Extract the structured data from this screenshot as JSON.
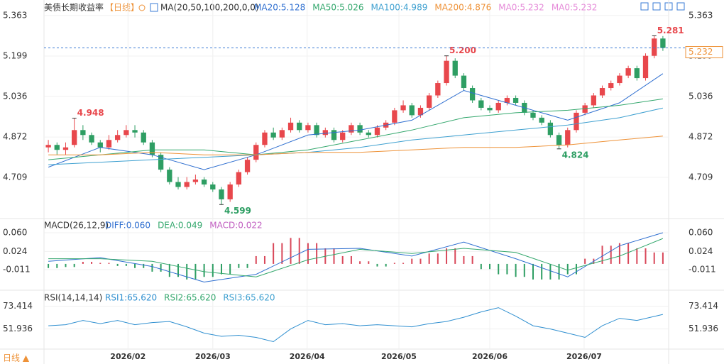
{
  "chart_data": [
    {
      "type": "candlestick",
      "title": "美债长期收益率",
      "period": "【日线】",
      "ma_label": "MA(20,50,100,200,0,0)",
      "up_color": "#e8474c",
      "down_color": "#2e9e63",
      "xlim": [
        0,
        72
      ],
      "ylim": [
        4.551,
        5.397
      ],
      "yticks": [
        5.363,
        5.199,
        5.036,
        4.872,
        4.709
      ],
      "xticks": [
        {
          "value": 9.2,
          "label": "2026/02"
        },
        {
          "value": 19.0,
          "label": "2026/03"
        },
        {
          "value": 29.9,
          "label": "2026/04"
        },
        {
          "value": 40.5,
          "label": "2026/05"
        },
        {
          "value": 51.0,
          "label": "2026/06"
        },
        {
          "value": 61.9,
          "label": "2026/07"
        }
      ],
      "ohlc": [
        [
          4.83,
          4.86,
          4.81,
          4.84
        ],
        [
          4.84,
          4.85,
          4.8,
          4.82
        ],
        [
          4.82,
          4.85,
          4.8,
          4.83
        ],
        [
          4.84,
          4.948,
          4.83,
          4.9
        ],
        [
          4.9,
          4.92,
          4.86,
          4.88
        ],
        [
          4.88,
          4.89,
          4.84,
          4.85
        ],
        [
          4.85,
          4.86,
          4.81,
          4.83
        ],
        [
          4.83,
          4.88,
          4.82,
          4.86
        ],
        [
          4.86,
          4.9,
          4.85,
          4.88
        ],
        [
          4.88,
          4.92,
          4.87,
          4.9
        ],
        [
          4.9,
          4.92,
          4.87,
          4.89
        ],
        [
          4.89,
          4.9,
          4.84,
          4.85
        ],
        [
          4.85,
          4.86,
          4.79,
          4.8
        ],
        [
          4.8,
          4.81,
          4.73,
          4.74
        ],
        [
          4.74,
          4.75,
          4.68,
          4.69
        ],
        [
          4.69,
          4.71,
          4.66,
          4.67
        ],
        [
          4.67,
          4.71,
          4.66,
          4.69
        ],
        [
          4.69,
          4.72,
          4.68,
          4.7
        ],
        [
          4.7,
          4.71,
          4.67,
          4.68
        ],
        [
          4.68,
          4.69,
          4.65,
          4.66
        ],
        [
          4.66,
          4.67,
          4.599,
          4.62
        ],
        [
          4.62,
          4.69,
          4.61,
          4.68
        ],
        [
          4.68,
          4.74,
          4.67,
          4.73
        ],
        [
          4.73,
          4.79,
          4.72,
          4.78
        ],
        [
          4.78,
          4.85,
          4.77,
          4.84
        ],
        [
          4.84,
          4.9,
          4.83,
          4.89
        ],
        [
          4.89,
          4.91,
          4.86,
          4.87
        ],
        [
          4.87,
          4.91,
          4.86,
          4.9
        ],
        [
          4.9,
          4.95,
          4.89,
          4.93
        ],
        [
          4.93,
          4.94,
          4.89,
          4.9
        ],
        [
          4.9,
          4.93,
          4.89,
          4.92
        ],
        [
          4.92,
          4.93,
          4.87,
          4.88
        ],
        [
          4.88,
          4.91,
          4.87,
          4.9
        ],
        [
          4.9,
          4.91,
          4.85,
          4.86
        ],
        [
          4.86,
          4.9,
          4.85,
          4.89
        ],
        [
          4.89,
          4.93,
          4.88,
          4.92
        ],
        [
          4.92,
          4.93,
          4.88,
          4.89
        ],
        [
          4.89,
          4.9,
          4.87,
          4.88
        ],
        [
          4.88,
          4.92,
          4.87,
          4.91
        ],
        [
          4.91,
          4.94,
          4.9,
          4.93
        ],
        [
          4.93,
          4.99,
          4.92,
          4.98
        ],
        [
          4.98,
          5.02,
          4.97,
          5.0
        ],
        [
          5.0,
          5.01,
          4.95,
          4.96
        ],
        [
          4.96,
          5.0,
          4.95,
          4.99
        ],
        [
          4.99,
          5.05,
          4.98,
          5.04
        ],
        [
          5.04,
          5.1,
          5.03,
          5.09
        ],
        [
          5.09,
          5.2,
          5.08,
          5.18
        ],
        [
          5.18,
          5.19,
          5.11,
          5.12
        ],
        [
          5.12,
          5.13,
          5.06,
          5.07
        ],
        [
          5.07,
          5.08,
          5.01,
          5.02
        ],
        [
          5.02,
          5.03,
          4.98,
          4.99
        ],
        [
          4.99,
          5.0,
          4.97,
          4.98
        ],
        [
          4.98,
          5.02,
          4.97,
          5.01
        ],
        [
          5.01,
          5.04,
          5.0,
          5.03
        ],
        [
          5.03,
          5.04,
          5.0,
          5.01
        ],
        [
          5.01,
          5.02,
          4.96,
          4.97
        ],
        [
          4.97,
          4.98,
          4.94,
          4.95
        ],
        [
          4.95,
          4.96,
          4.92,
          4.93
        ],
        [
          4.93,
          4.94,
          4.87,
          4.88
        ],
        [
          4.88,
          4.89,
          4.824,
          4.84
        ],
        [
          4.84,
          4.91,
          4.83,
          4.9
        ],
        [
          4.9,
          4.98,
          4.89,
          4.97
        ],
        [
          4.97,
          5.01,
          4.96,
          5.0
        ],
        [
          5.0,
          5.05,
          4.99,
          5.04
        ],
        [
          5.04,
          5.08,
          5.03,
          5.07
        ],
        [
          5.07,
          5.1,
          5.06,
          5.09
        ],
        [
          5.09,
          5.13,
          5.08,
          5.12
        ],
        [
          5.12,
          5.16,
          5.11,
          5.15
        ],
        [
          5.15,
          5.16,
          5.1,
          5.11
        ],
        [
          5.11,
          5.21,
          5.1,
          5.2
        ],
        [
          5.2,
          5.281,
          5.19,
          5.27
        ],
        [
          5.27,
          5.28,
          5.22,
          5.232
        ]
      ],
      "series": [
        {
          "label": "MA20:5.128",
          "color": "#2f6fd0",
          "x": [
            0,
            6,
            12,
            18,
            24,
            30,
            36,
            42,
            48,
            54,
            60,
            66,
            71
          ],
          "values": [
            4.75,
            4.83,
            4.8,
            4.74,
            4.8,
            4.88,
            4.9,
            4.94,
            5.06,
            5.0,
            4.94,
            5.01,
            5.128
          ]
        },
        {
          "label": "MA50:5.026",
          "color": "#35a86e",
          "x": [
            0,
            6,
            12,
            18,
            24,
            30,
            36,
            42,
            48,
            54,
            60,
            66,
            71
          ],
          "values": [
            4.78,
            4.8,
            4.82,
            4.82,
            4.8,
            4.82,
            4.86,
            4.9,
            4.95,
            4.97,
            4.98,
            5.0,
            5.026
          ]
        },
        {
          "label": "MA100:4.989",
          "color": "#3ea0d0",
          "x": [
            0,
            6,
            12,
            18,
            24,
            30,
            36,
            42,
            48,
            54,
            60,
            66,
            71
          ],
          "values": [
            4.76,
            4.77,
            4.78,
            4.79,
            4.8,
            4.81,
            4.83,
            4.86,
            4.88,
            4.9,
            4.92,
            4.95,
            4.989
          ]
        },
        {
          "label": "MA200:4.876",
          "color": "#ee9238",
          "x": [
            0,
            6,
            12,
            18,
            24,
            30,
            36,
            42,
            48,
            54,
            60,
            66,
            71
          ],
          "values": [
            4.8,
            4.8,
            4.81,
            4.8,
            4.8,
            4.81,
            4.81,
            4.82,
            4.83,
            4.83,
            4.84,
            4.86,
            4.876
          ]
        }
      ],
      "extra_legend": [
        {
          "label": "MA0:5.232",
          "color": "#e58ad8"
        },
        {
          "label": "MA0:5.232",
          "color": "#e58ad8"
        }
      ],
      "annotations": [
        {
          "x": 3,
          "value": 4.948,
          "label": "4.948",
          "color": "#e8474c"
        },
        {
          "x": 20,
          "value": 4.599,
          "label": "4.599",
          "color": "#2e9e63"
        },
        {
          "x": 46,
          "value": 5.2,
          "label": "5.200",
          "color": "#e8474c"
        },
        {
          "x": 59,
          "value": 4.824,
          "label": "4.824",
          "color": "#2e9e63"
        },
        {
          "x": 70,
          "value": 5.281,
          "label": "5.281",
          "color": "#e8474c"
        }
      ],
      "last_price": {
        "value": 5.232,
        "label": "5.232",
        "color": "#ee9238"
      },
      "period_button": "日线 ▲"
    },
    {
      "type": "macd",
      "title": "MACD(26,12,9)",
      "xlim": [
        0,
        72
      ],
      "ylim": [
        -0.0493,
        0.0846
      ],
      "yticks": [
        {
          "value": 0.06,
          "label": "0.060"
        },
        {
          "value": 0.024,
          "label": "0.024"
        },
        {
          "value": -0.011,
          "label": "-0.011"
        }
      ],
      "up_color": "#d9485a",
      "down_color": "#2e9e63",
      "histogram": {
        "label": "MACD:0.022",
        "color": "#c05dc0",
        "x": [
          0,
          2,
          4,
          6,
          8,
          10,
          12,
          14,
          16,
          18,
          20,
          22,
          24,
          26,
          28,
          30,
          32,
          34,
          36,
          38,
          40,
          42,
          44,
          46,
          48,
          50,
          52,
          54,
          56,
          58,
          60,
          62,
          64,
          66,
          68,
          70
        ],
        "values": [
          -0.008,
          -0.006,
          0.004,
          0.002,
          -0.004,
          -0.008,
          -0.015,
          -0.025,
          -0.03,
          -0.025,
          -0.02,
          -0.008,
          0.015,
          0.04,
          0.05,
          0.04,
          0.03,
          0.015,
          0.005,
          -0.005,
          0.002,
          0.01,
          0.02,
          0.03,
          0.015,
          -0.01,
          -0.02,
          -0.025,
          -0.03,
          -0.03,
          -0.02,
          0.01,
          0.035,
          0.04,
          0.03,
          0.022
        ]
      },
      "series": [
        {
          "label": "DIFF:0.060",
          "color": "#2f6fd0",
          "x": [
            0,
            6,
            12,
            18,
            24,
            30,
            36,
            42,
            48,
            54,
            60,
            66,
            71
          ],
          "values": [
            0.005,
            0.012,
            -0.005,
            -0.035,
            -0.02,
            0.028,
            0.03,
            0.015,
            0.042,
            0.01,
            -0.025,
            0.035,
            0.06
          ]
        },
        {
          "label": "DEA:0.049",
          "color": "#35a86e",
          "x": [
            0,
            6,
            12,
            18,
            24,
            30,
            36,
            42,
            48,
            54,
            60,
            66,
            71
          ],
          "values": [
            0.01,
            0.01,
            0.005,
            -0.015,
            -0.025,
            0.008,
            0.028,
            0.02,
            0.03,
            0.022,
            -0.012,
            0.015,
            0.049
          ]
        }
      ]
    },
    {
      "type": "line",
      "title": "RSI(14,14,14)",
      "xlim": [
        0,
        72
      ],
      "ylim": [
        34.35,
        86.4
      ],
      "yticks": [
        73.414,
        51.936
      ],
      "series": [
        {
          "label": "RSI1:65.620",
          "color": "#2f8fd0",
          "x": [
            0,
            2,
            4,
            6,
            8,
            10,
            12,
            14,
            16,
            18,
            20,
            22,
            24,
            26,
            28,
            30,
            32,
            34,
            36,
            38,
            40,
            42,
            44,
            46,
            48,
            50,
            52,
            54,
            56,
            58,
            60,
            62,
            64,
            66,
            68,
            71
          ],
          "values": [
            55,
            56,
            60,
            57,
            60,
            56,
            58,
            59,
            54,
            48,
            45,
            46,
            44,
            40,
            52,
            60,
            56,
            57,
            55,
            56,
            55,
            54,
            57,
            59,
            63,
            68,
            72,
            64,
            55,
            52,
            48,
            44,
            55,
            62,
            60,
            65.62
          ]
        }
      ],
      "extra_legend": [
        {
          "label": "RSI2:65.620",
          "color": "#35a86e"
        },
        {
          "label": "RSI3:65.620",
          "color": "#3ea0d0"
        }
      ]
    }
  ]
}
